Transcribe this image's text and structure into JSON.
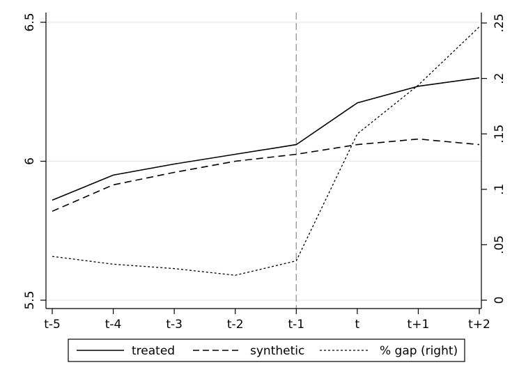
{
  "chart_data": {
    "type": "line",
    "title": "",
    "xlabel": "",
    "ylabel": "",
    "categories": [
      "t-5",
      "t-4",
      "t-3",
      "t-2",
      "t-1",
      "t",
      "t+1",
      "t+2"
    ],
    "y_left": {
      "ylim": [
        5.5,
        6.5
      ],
      "ticks": [
        5.5,
        6,
        6.5
      ],
      "tick_labels": [
        "5.5",
        "6",
        "6.5"
      ]
    },
    "y_right": {
      "ylim": [
        0,
        0.25
      ],
      "ticks": [
        0,
        0.05,
        0.1,
        0.15,
        0.2,
        0.25
      ],
      "tick_labels": [
        "0",
        ".05",
        ".1",
        ".15",
        ".2",
        ".25"
      ]
    },
    "grid": true,
    "treatment_line_at": "t-1",
    "legend_position": "bottom",
    "series": [
      {
        "name": "treated",
        "axis": "left",
        "style": "solid",
        "values": [
          5.86,
          5.95,
          5.99,
          6.025,
          6.06,
          6.21,
          6.27,
          6.3
        ]
      },
      {
        "name": "synthetic",
        "axis": "left",
        "style": "dashed",
        "values": [
          5.82,
          5.915,
          5.96,
          6.0,
          6.025,
          6.06,
          6.08,
          6.06
        ]
      },
      {
        "name": "% gap (right)",
        "axis": "right",
        "style": "dotted",
        "values": [
          0.0395,
          0.0325,
          0.0285,
          0.0225,
          0.0355,
          0.15,
          0.194,
          0.2465
        ]
      }
    ]
  }
}
